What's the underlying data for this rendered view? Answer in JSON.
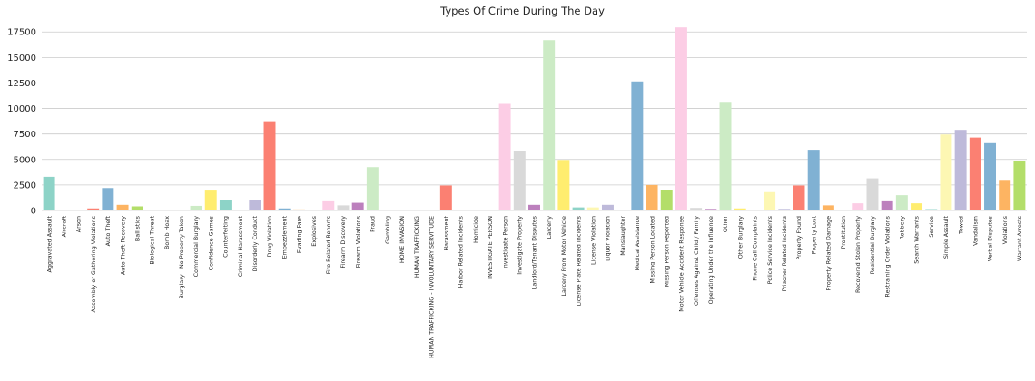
{
  "chart_data": {
    "type": "bar",
    "title": "Types Of Crime During The Day",
    "xlabel": "",
    "ylabel": "",
    "ylim": [
      0,
      18500
    ],
    "yticks": [
      0,
      2500,
      5000,
      7500,
      10000,
      12500,
      15000,
      17500
    ],
    "grid": true,
    "palette": [
      "#8dd3c7",
      "#fdf7b3",
      "#bebada",
      "#fb8072",
      "#80b1d3",
      "#fdb462",
      "#b3de69",
      "#fccde5",
      "#d9d9d9",
      "#bc80bd",
      "#ccebc5",
      "#ffed6f"
    ],
    "categories": [
      "Aggravated Assault",
      "Aircraft",
      "Arson",
      "Assembly or Gathering Violations",
      "Auto Theft",
      "Auto Theft Recovery",
      "Ballistics",
      "Biological Threat",
      "Bomb Hoax",
      "Burglary - No Property Taken",
      "Commercial Burglary",
      "Confidence Games",
      "Counterfeiting",
      "Criminal Harassment",
      "Disorderly Conduct",
      "Drug Violation",
      "Embezzlement",
      "Evading Fare",
      "Explosives",
      "Fire Related Reports",
      "Firearm Discovery",
      "Firearm Violations",
      "Fraud",
      "Gambling",
      "HOME INVASION",
      "HUMAN TRAFFICKING",
      "HUMAN TRAFFICKING - INVOLUNTARY SERVITUDE",
      "Harassment",
      "Harbor Related Incidents",
      "Homicide",
      "INVESTIGATE PERSON",
      "Investigate Person",
      "Investigate Property",
      "Landlord/Tenant Disputes",
      "Larceny",
      "Larceny From Motor Vehicle",
      "License Plate Related Incidents",
      "License Violation",
      "Liquor Violation",
      "Manslaughter",
      "Medical Assistance",
      "Missing Person Located",
      "Missing Person Reported",
      "Motor Vehicle Accident Response",
      "Offenses Against Child / Family",
      "Operating Under the Influence",
      "Other",
      "Other Burglary",
      "Phone Call Complaints",
      "Police Service Incidents",
      "Prisoner Related Incidents",
      "Property Found",
      "Property Lost",
      "Property Related Damage",
      "Prostitution",
      "Recovered Stolen Property",
      "Residential Burglary",
      "Restraining Order Violations",
      "Robbery",
      "Search Warrants",
      "Service",
      "Simple Assault",
      "Towed",
      "Vandalism",
      "Verbal Disputes",
      "Violations",
      "Warrant Arrests"
    ],
    "values": [
      3300,
      0,
      20,
      200,
      2200,
      550,
      400,
      10,
      10,
      50,
      450,
      1950,
      1000,
      60,
      1000,
      8750,
      200,
      100,
      40,
      900,
      500,
      750,
      4250,
      20,
      5,
      5,
      5,
      2450,
      40,
      40,
      10,
      10450,
      5800,
      550,
      16700,
      4950,
      300,
      300,
      550,
      10,
      12650,
      2500,
      2000,
      17950,
      250,
      150,
      10650,
      200,
      30,
      1800,
      150,
      2450,
      5950,
      500,
      30,
      700,
      3150,
      900,
      1500,
      700,
      130,
      7450,
      7900,
      7150,
      6600,
      3000,
      4850
    ]
  }
}
